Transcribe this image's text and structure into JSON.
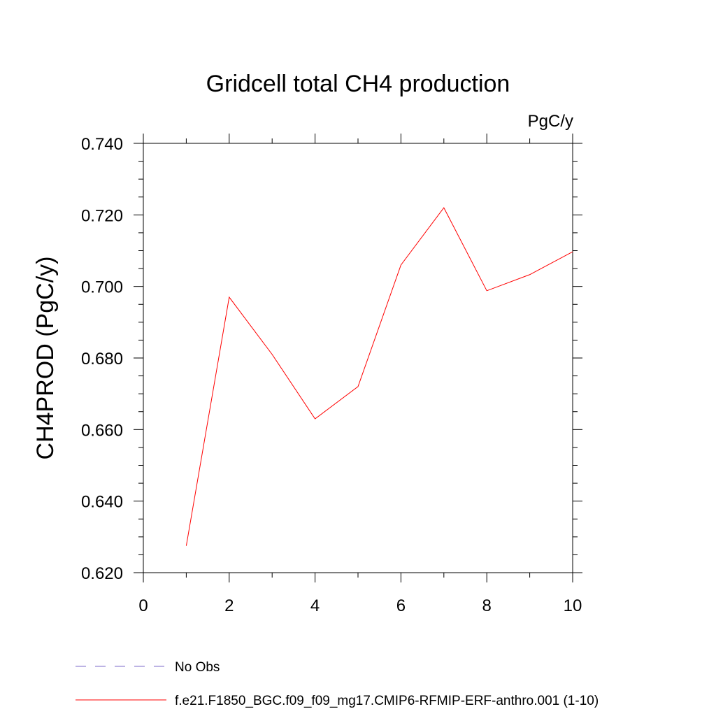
{
  "chart_data": {
    "type": "line",
    "title": "Gridcell total CH4 production",
    "units_label": "PgC/y",
    "xlabel": "",
    "ylabel": "CH4PROD  (PgC/y)",
    "xlim": [
      0,
      10
    ],
    "ylim": [
      0.62,
      0.74
    ],
    "x_ticks": [
      0,
      2,
      4,
      6,
      8,
      10
    ],
    "x_tick_labels": [
      "0",
      "2",
      "4",
      "6",
      "8",
      "10"
    ],
    "y_ticks": [
      0.62,
      0.64,
      0.66,
      0.68,
      0.7,
      0.72,
      0.74
    ],
    "y_tick_labels": [
      "0.620",
      "0.640",
      "0.660",
      "0.680",
      "0.700",
      "0.720",
      "0.740"
    ],
    "grid": false,
    "series": [
      {
        "name": "f.e21.F1850_BGC.f09_f09_mg17.CMIP6-RFMIP-ERF-anthro.001 (1-10)",
        "color": "#ff0000",
        "style": "solid",
        "x": [
          1,
          2,
          3,
          4,
          5,
          6,
          7,
          8,
          9,
          10
        ],
        "values": [
          0.6275,
          0.697,
          0.681,
          0.663,
          0.672,
          0.706,
          0.722,
          0.6988,
          0.7033,
          0.7097
        ]
      }
    ],
    "legend": {
      "placement": "bottom-left",
      "entries": [
        {
          "label": "No Obs",
          "color": "#7b68c8",
          "style": "dashed"
        },
        {
          "label": "f.e21.F1850_BGC.f09_f09_mg17.CMIP6-RFMIP-ERF-anthro.001 (1-10)",
          "color": "#ff0000",
          "style": "solid"
        }
      ]
    }
  }
}
